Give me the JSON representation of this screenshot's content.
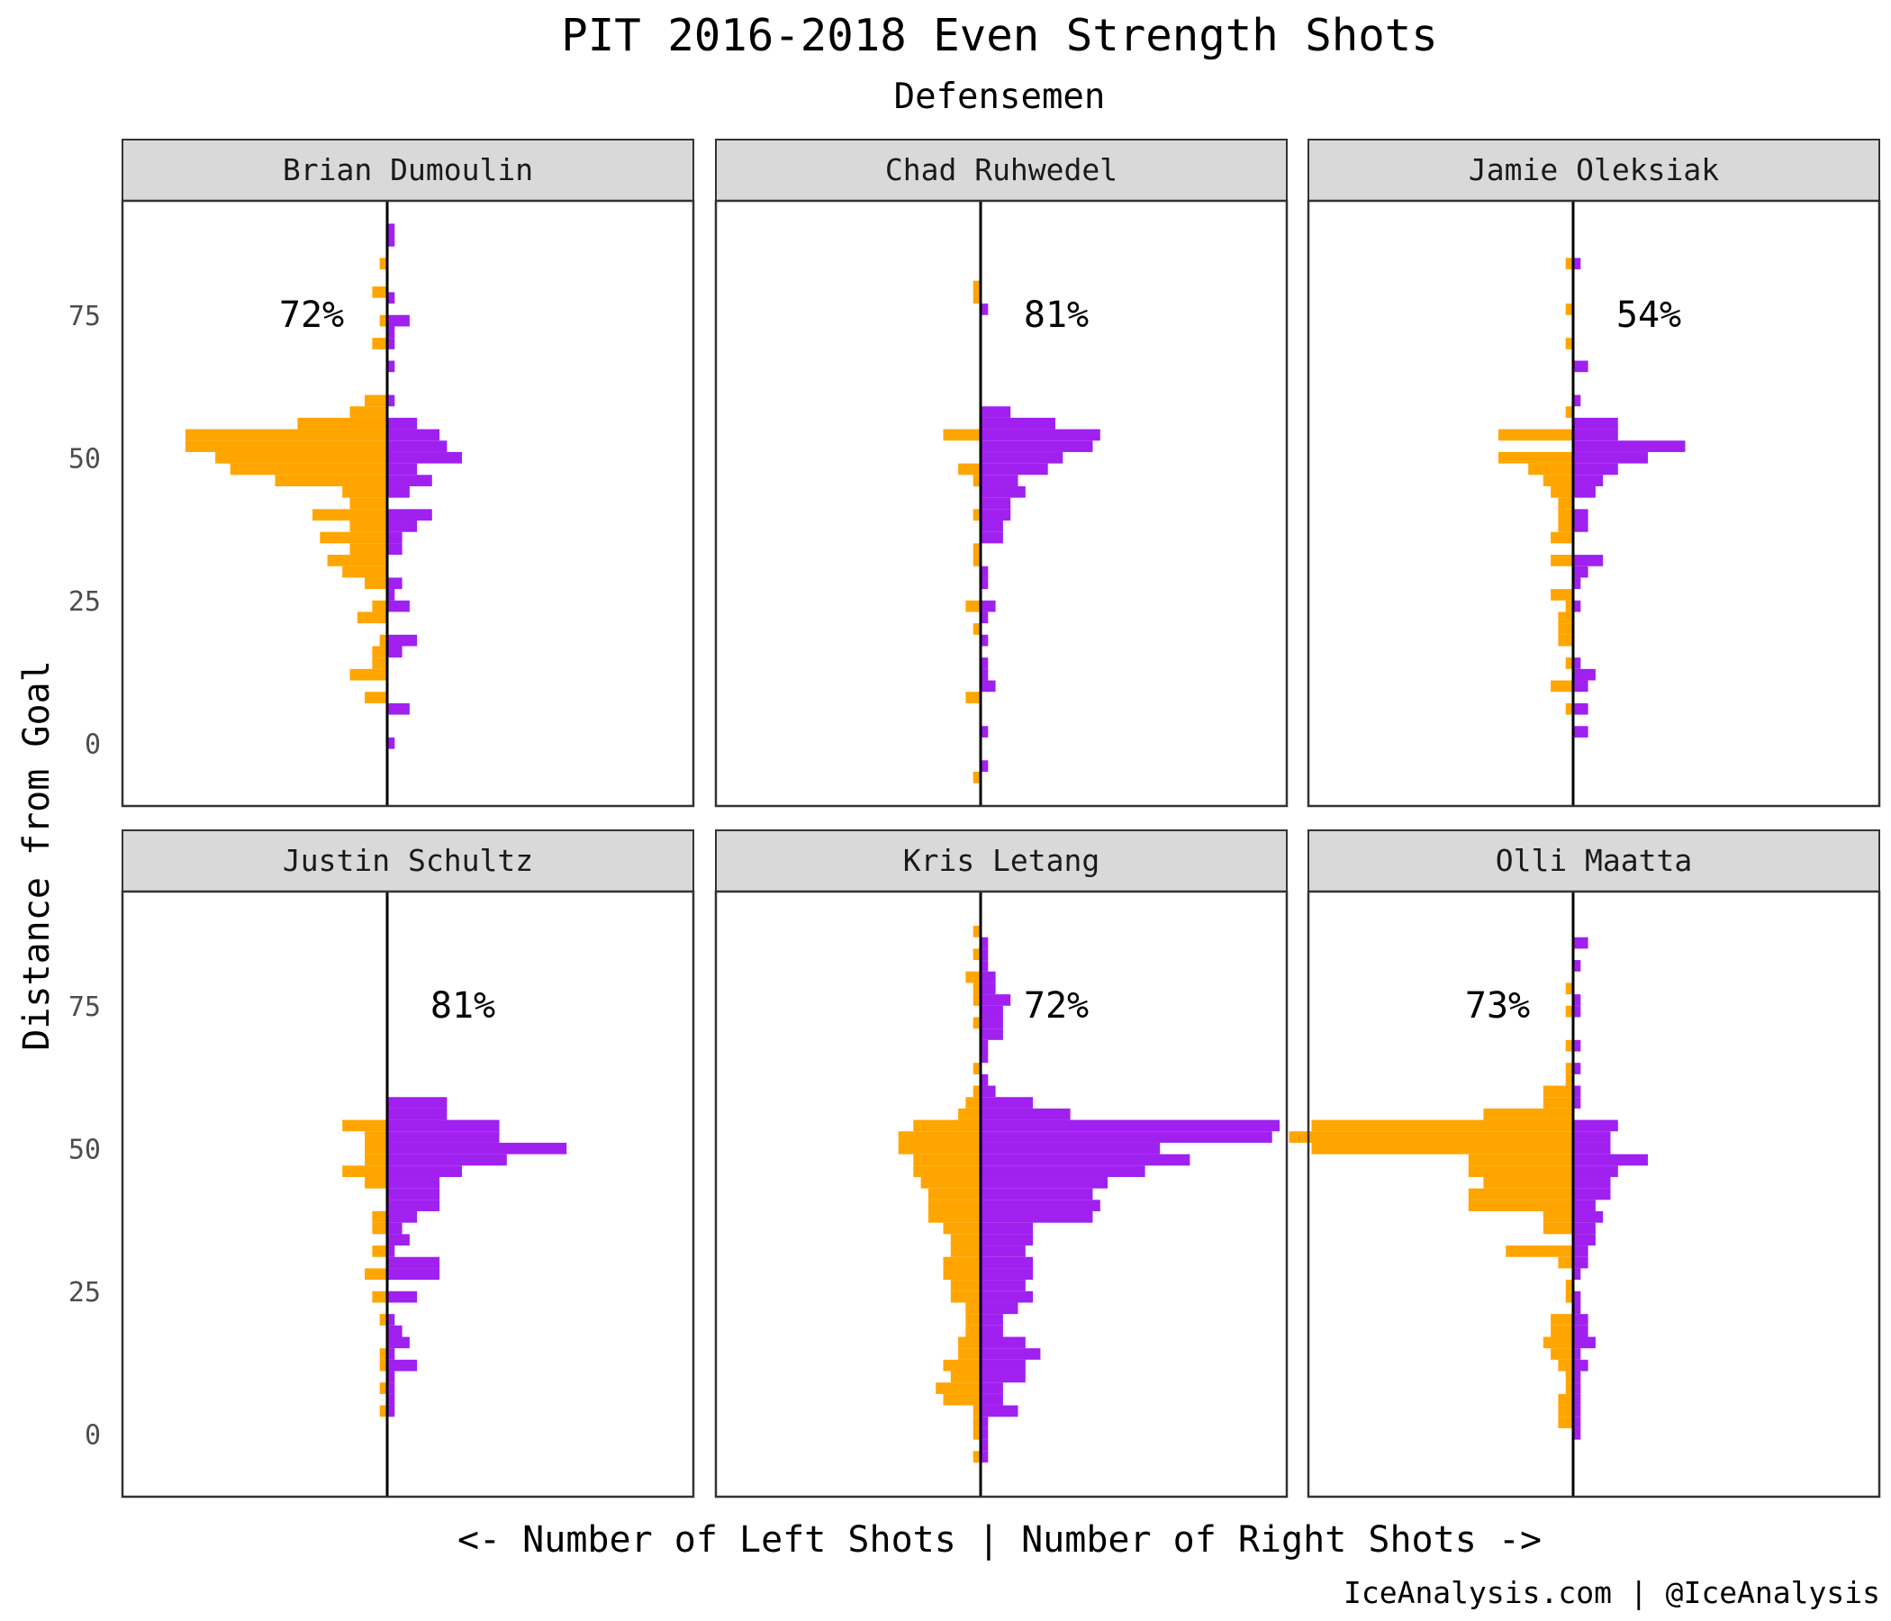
{
  "chart": {
    "title": "PIT 2016-2018 Even Strength Shots",
    "subtitle": "Defensemen",
    "ylabel": "Distance from Goal",
    "xlabel": "<- Number of Left Shots | Number of Right Shots ->",
    "caption": "IceAnalysis.com | @IceAnalysis",
    "colors": {
      "left": "#FFA500",
      "right": "#A020F0",
      "strip": "#D9D9D9",
      "axis": "#000000"
    }
  },
  "chart_data": {
    "type": "bar",
    "orientation": "horizontal-mirrored",
    "ylim": [
      -11,
      95
    ],
    "yticks": [
      0,
      25,
      50,
      75
    ],
    "bin_width": 2,
    "panels": [
      {
        "name": "Brian Dumoulin",
        "pct": "72%",
        "left": [
          [
            84,
            1
          ],
          [
            79,
            2
          ],
          [
            74,
            1
          ],
          [
            70,
            2
          ],
          [
            60,
            3
          ],
          [
            58,
            5
          ],
          [
            56,
            12
          ],
          [
            54,
            27
          ],
          [
            52,
            27
          ],
          [
            50,
            23
          ],
          [
            48,
            21
          ],
          [
            46,
            15
          ],
          [
            44,
            6
          ],
          [
            42,
            5
          ],
          [
            40,
            10
          ],
          [
            38,
            5
          ],
          [
            36,
            9
          ],
          [
            34,
            5
          ],
          [
            32,
            8
          ],
          [
            30,
            6
          ],
          [
            28,
            3
          ],
          [
            24,
            2
          ],
          [
            22,
            4
          ],
          [
            18,
            1
          ],
          [
            16,
            2
          ],
          [
            14,
            2
          ],
          [
            12,
            5
          ],
          [
            8,
            3
          ]
        ],
        "right": [
          [
            90,
            1
          ],
          [
            88,
            1
          ],
          [
            78,
            1
          ],
          [
            74,
            3
          ],
          [
            72,
            1
          ],
          [
            70,
            1
          ],
          [
            66,
            1
          ],
          [
            60,
            1
          ],
          [
            56,
            4
          ],
          [
            54,
            7
          ],
          [
            52,
            8
          ],
          [
            50,
            10
          ],
          [
            48,
            4
          ],
          [
            46,
            6
          ],
          [
            44,
            3
          ],
          [
            40,
            6
          ],
          [
            38,
            4
          ],
          [
            36,
            2
          ],
          [
            34,
            2
          ],
          [
            28,
            2
          ],
          [
            26,
            1
          ],
          [
            24,
            3
          ],
          [
            18,
            4
          ],
          [
            16,
            2
          ],
          [
            6,
            3
          ],
          [
            0,
            1
          ]
        ]
      },
      {
        "name": "Chad Ruhwedel",
        "pct": "81%",
        "left": [
          [
            80,
            1
          ],
          [
            78,
            1
          ],
          [
            54,
            5
          ],
          [
            48,
            3
          ],
          [
            46,
            1
          ],
          [
            40,
            1
          ],
          [
            34,
            1
          ],
          [
            32,
            1
          ],
          [
            24,
            2
          ],
          [
            20,
            1
          ],
          [
            8,
            2
          ],
          [
            -6,
            1
          ]
        ],
        "right": [
          [
            76,
            1
          ],
          [
            58,
            4
          ],
          [
            56,
            10
          ],
          [
            54,
            16
          ],
          [
            52,
            15
          ],
          [
            50,
            11
          ],
          [
            48,
            9
          ],
          [
            46,
            5
          ],
          [
            44,
            6
          ],
          [
            42,
            4
          ],
          [
            40,
            4
          ],
          [
            38,
            3
          ],
          [
            36,
            3
          ],
          [
            30,
            1
          ],
          [
            28,
            1
          ],
          [
            24,
            2
          ],
          [
            22,
            1
          ],
          [
            18,
            1
          ],
          [
            14,
            1
          ],
          [
            12,
            1
          ],
          [
            10,
            2
          ],
          [
            2,
            1
          ],
          [
            -4,
            1
          ]
        ]
      },
      {
        "name": "Jamie Oleksiak",
        "pct": "54%",
        "left": [
          [
            84,
            1
          ],
          [
            76,
            1
          ],
          [
            70,
            1
          ],
          [
            58,
            1
          ],
          [
            54,
            10
          ],
          [
            50,
            10
          ],
          [
            48,
            6
          ],
          [
            46,
            4
          ],
          [
            44,
            3
          ],
          [
            42,
            2
          ],
          [
            40,
            2
          ],
          [
            38,
            2
          ],
          [
            36,
            3
          ],
          [
            32,
            3
          ],
          [
            26,
            3
          ],
          [
            24,
            1
          ],
          [
            22,
            2
          ],
          [
            20,
            2
          ],
          [
            18,
            2
          ],
          [
            14,
            1
          ],
          [
            10,
            3
          ],
          [
            6,
            1
          ]
        ],
        "right": [
          [
            84,
            1
          ],
          [
            66,
            2
          ],
          [
            60,
            1
          ],
          [
            56,
            6
          ],
          [
            54,
            6
          ],
          [
            52,
            15
          ],
          [
            50,
            10
          ],
          [
            48,
            6
          ],
          [
            46,
            4
          ],
          [
            44,
            3
          ],
          [
            40,
            2
          ],
          [
            38,
            2
          ],
          [
            32,
            4
          ],
          [
            30,
            2
          ],
          [
            28,
            1
          ],
          [
            24,
            1
          ],
          [
            14,
            1
          ],
          [
            12,
            3
          ],
          [
            10,
            2
          ],
          [
            6,
            2
          ],
          [
            2,
            2
          ]
        ]
      },
      {
        "name": "Justin Schultz",
        "pct": "81%",
        "left": [
          [
            54,
            6
          ],
          [
            52,
            3
          ],
          [
            50,
            3
          ],
          [
            48,
            3
          ],
          [
            46,
            6
          ],
          [
            44,
            3
          ],
          [
            38,
            2
          ],
          [
            36,
            2
          ],
          [
            32,
            2
          ],
          [
            28,
            3
          ],
          [
            24,
            2
          ],
          [
            20,
            1
          ],
          [
            14,
            1
          ],
          [
            12,
            1
          ],
          [
            8,
            1
          ],
          [
            4,
            1
          ]
        ],
        "right": [
          [
            58,
            8
          ],
          [
            56,
            8
          ],
          [
            54,
            15
          ],
          [
            52,
            15
          ],
          [
            50,
            24
          ],
          [
            48,
            16
          ],
          [
            46,
            10
          ],
          [
            44,
            7
          ],
          [
            42,
            7
          ],
          [
            40,
            7
          ],
          [
            38,
            4
          ],
          [
            36,
            2
          ],
          [
            34,
            3
          ],
          [
            32,
            1
          ],
          [
            30,
            7
          ],
          [
            28,
            7
          ],
          [
            24,
            4
          ],
          [
            20,
            1
          ],
          [
            18,
            2
          ],
          [
            16,
            3
          ],
          [
            14,
            1
          ],
          [
            12,
            4
          ],
          [
            10,
            1
          ],
          [
            8,
            1
          ],
          [
            6,
            1
          ],
          [
            4,
            1
          ]
        ]
      },
      {
        "name": "Kris Letang",
        "pct": "72%",
        "left": [
          [
            88,
            1
          ],
          [
            84,
            1
          ],
          [
            80,
            2
          ],
          [
            78,
            1
          ],
          [
            76,
            1
          ],
          [
            72,
            1
          ],
          [
            64,
            1
          ],
          [
            60,
            1
          ],
          [
            58,
            2
          ],
          [
            56,
            3
          ],
          [
            54,
            9
          ],
          [
            52,
            11
          ],
          [
            50,
            11
          ],
          [
            48,
            9
          ],
          [
            46,
            9
          ],
          [
            44,
            8
          ],
          [
            42,
            7
          ],
          [
            40,
            7
          ],
          [
            38,
            7
          ],
          [
            36,
            5
          ],
          [
            34,
            4
          ],
          [
            32,
            4
          ],
          [
            30,
            5
          ],
          [
            28,
            5
          ],
          [
            26,
            4
          ],
          [
            24,
            4
          ],
          [
            22,
            2
          ],
          [
            20,
            2
          ],
          [
            18,
            2
          ],
          [
            16,
            3
          ],
          [
            14,
            3
          ],
          [
            12,
            5
          ],
          [
            10,
            4
          ],
          [
            8,
            6
          ],
          [
            6,
            5
          ],
          [
            4,
            1
          ],
          [
            2,
            1
          ],
          [
            0,
            1
          ],
          [
            -4,
            1
          ]
        ],
        "right": [
          [
            86,
            1
          ],
          [
            84,
            1
          ],
          [
            82,
            1
          ],
          [
            80,
            2
          ],
          [
            78,
            2
          ],
          [
            76,
            4
          ],
          [
            74,
            3
          ],
          [
            72,
            3
          ],
          [
            70,
            3
          ],
          [
            68,
            1
          ],
          [
            66,
            1
          ],
          [
            62,
            1
          ],
          [
            60,
            2
          ],
          [
            58,
            7
          ],
          [
            56,
            12
          ],
          [
            54,
            40
          ],
          [
            52,
            39
          ],
          [
            50,
            24
          ],
          [
            48,
            28
          ],
          [
            46,
            22
          ],
          [
            44,
            17
          ],
          [
            42,
            15
          ],
          [
            40,
            16
          ],
          [
            38,
            15
          ],
          [
            36,
            7
          ],
          [
            34,
            7
          ],
          [
            32,
            6
          ],
          [
            30,
            7
          ],
          [
            28,
            7
          ],
          [
            26,
            6
          ],
          [
            24,
            7
          ],
          [
            22,
            5
          ],
          [
            20,
            3
          ],
          [
            18,
            3
          ],
          [
            16,
            6
          ],
          [
            14,
            8
          ],
          [
            12,
            6
          ],
          [
            10,
            6
          ],
          [
            8,
            3
          ],
          [
            6,
            3
          ],
          [
            4,
            5
          ],
          [
            2,
            1
          ],
          [
            0,
            1
          ],
          [
            -2,
            1
          ],
          [
            -4,
            1
          ]
        ]
      },
      {
        "name": "Olli Maatta",
        "pct": "73%",
        "left": [
          [
            78,
            1
          ],
          [
            74,
            1
          ],
          [
            68,
            1
          ],
          [
            64,
            1
          ],
          [
            62,
            1
          ],
          [
            60,
            4
          ],
          [
            58,
            4
          ],
          [
            56,
            12
          ],
          [
            54,
            35
          ],
          [
            52,
            38
          ],
          [
            50,
            35
          ],
          [
            48,
            14
          ],
          [
            46,
            14
          ],
          [
            44,
            12
          ],
          [
            42,
            14
          ],
          [
            40,
            14
          ],
          [
            38,
            4
          ],
          [
            36,
            4
          ],
          [
            32,
            9
          ],
          [
            30,
            2
          ],
          [
            26,
            1
          ],
          [
            24,
            1
          ],
          [
            20,
            3
          ],
          [
            18,
            3
          ],
          [
            16,
            4
          ],
          [
            14,
            3
          ],
          [
            12,
            2
          ],
          [
            10,
            1
          ],
          [
            8,
            1
          ],
          [
            6,
            2
          ],
          [
            4,
            2
          ],
          [
            2,
            2
          ]
        ],
        "right": [
          [
            86,
            2
          ],
          [
            82,
            1
          ],
          [
            76,
            1
          ],
          [
            74,
            1
          ],
          [
            68,
            1
          ],
          [
            64,
            1
          ],
          [
            60,
            1
          ],
          [
            58,
            1
          ],
          [
            54,
            6
          ],
          [
            52,
            5
          ],
          [
            50,
            5
          ],
          [
            48,
            10
          ],
          [
            46,
            6
          ],
          [
            44,
            5
          ],
          [
            42,
            5
          ],
          [
            40,
            3
          ],
          [
            38,
            4
          ],
          [
            36,
            3
          ],
          [
            34,
            3
          ],
          [
            32,
            2
          ],
          [
            30,
            2
          ],
          [
            28,
            1
          ],
          [
            24,
            1
          ],
          [
            22,
            1
          ],
          [
            20,
            2
          ],
          [
            18,
            2
          ],
          [
            16,
            3
          ],
          [
            14,
            1
          ],
          [
            12,
            2
          ],
          [
            10,
            1
          ],
          [
            8,
            1
          ],
          [
            6,
            1
          ],
          [
            4,
            1
          ],
          [
            2,
            1
          ],
          [
            0,
            1
          ]
        ]
      }
    ]
  }
}
